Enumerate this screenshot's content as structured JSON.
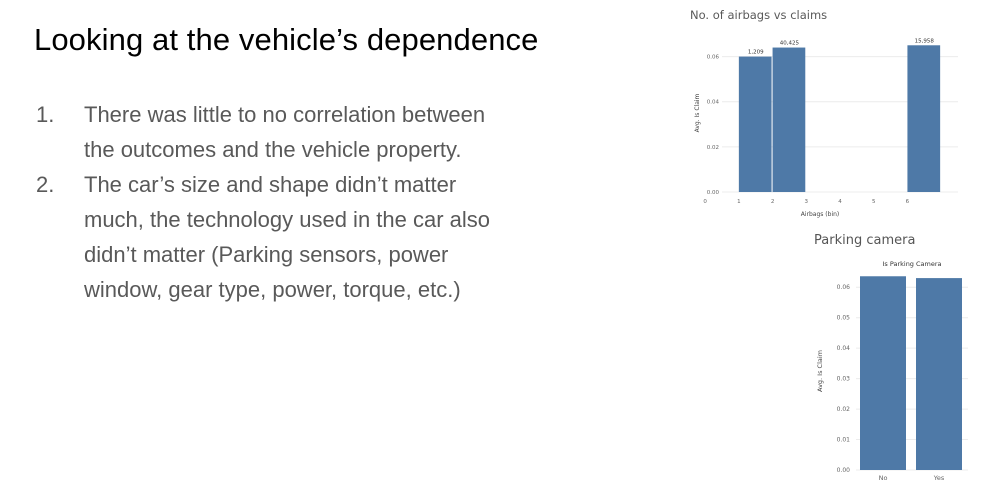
{
  "slide": {
    "title": "Looking at the vehicle’s dependence",
    "points": [
      {
        "num": "1.",
        "text": "There was little to no correlation between the outcomes and the vehicle property."
      },
      {
        "num": "2.",
        "text": "The car’s size and shape didn’t matter much, the technology used in the car also didn’t matter (Parking sensors, power window, gear type, power, torque, etc.)"
      }
    ]
  },
  "colors": {
    "bar": "#4e79a7",
    "grid": "#ececec",
    "axis_text": "#666666"
  },
  "chart_data": [
    {
      "type": "bar",
      "title": "No. of airbags vs claims",
      "xlabel": "Airbags (bin)",
      "ylabel": "Avg. Is Claim",
      "xlim": [
        0,
        7
      ],
      "ylim": [
        0,
        0.07
      ],
      "x_ticks": [
        "0",
        "1",
        "2",
        "3",
        "4",
        "5",
        "6"
      ],
      "y_ticks": [
        "0.00",
        "0.02",
        "0.04",
        "0.06"
      ],
      "categories": [
        "1",
        "2",
        "6"
      ],
      "values": [
        0.06,
        0.064,
        0.065
      ],
      "data_labels": [
        "1,209",
        "40,425",
        "15,958"
      ],
      "grid": true
    },
    {
      "type": "bar",
      "title": "Parking camera",
      "column_header": "Is Parking Camera",
      "ylabel": "Avg. Is Claim",
      "ylim": [
        0,
        0.065
      ],
      "y_ticks": [
        "0.00",
        "0.01",
        "0.02",
        "0.03",
        "0.04",
        "0.05",
        "0.06"
      ],
      "categories": [
        "No",
        "Yes"
      ],
      "values": [
        0.0636,
        0.063
      ],
      "grid": true
    }
  ]
}
